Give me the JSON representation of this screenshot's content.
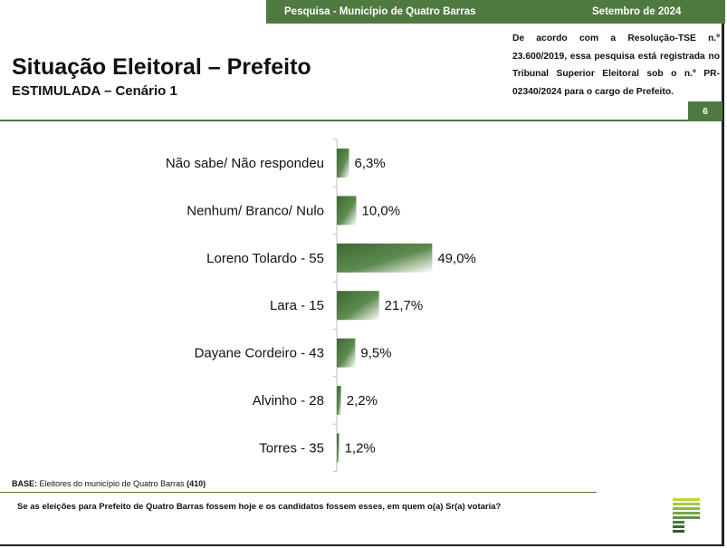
{
  "header": {
    "survey_label": "Pesquisa - Município de Quatro Barras",
    "date_label": "Setembro de 2024",
    "notice": "De acordo com a Resolução-TSE n.º 23.600/2019, essa pesquisa está registrada no Tribunal Superior Eleitoral sob o n.º PR-02340/2024 para o cargo de Prefeito.",
    "title": "Situação Eleitoral – Prefeito",
    "subtitle": "ESTIMULADA – Cenário 1",
    "page_number": "6"
  },
  "chart_data": {
    "type": "bar",
    "orientation": "horizontal",
    "categories": [
      "Não sabe/ Não respondeu",
      "Nenhum/ Branco/ Nulo",
      "Loreno Tolardo - 55",
      "Lara - 15",
      "Dayane Cordeiro - 43",
      "Alvinho - 28",
      "Torres - 35"
    ],
    "values": [
      6.3,
      10.0,
      49.0,
      21.7,
      9.5,
      2.2,
      1.2
    ],
    "value_labels": [
      "6,3%",
      "10,0%",
      "49,0%",
      "21,7%",
      "9,5%",
      "2,2%",
      "1,2%"
    ],
    "unit": "%",
    "xlim": [
      0,
      100
    ],
    "grid": false,
    "bar_color": "#4f7a3f"
  },
  "footer": {
    "base_prefix": "BASE:",
    "base_text": " Eleitores do município de Quatro Barras ",
    "base_count": "(410)",
    "question": "Se as eleições para Prefeito de Quatro Barras fossem hoje e os candidatos fossem esses, em quem o(a) Sr(a) votaria?"
  },
  "colors": {
    "accent": "#4f7a3f",
    "logo_light": "#c3d82f"
  },
  "icons": {
    "logo": "company-logo-icon"
  }
}
